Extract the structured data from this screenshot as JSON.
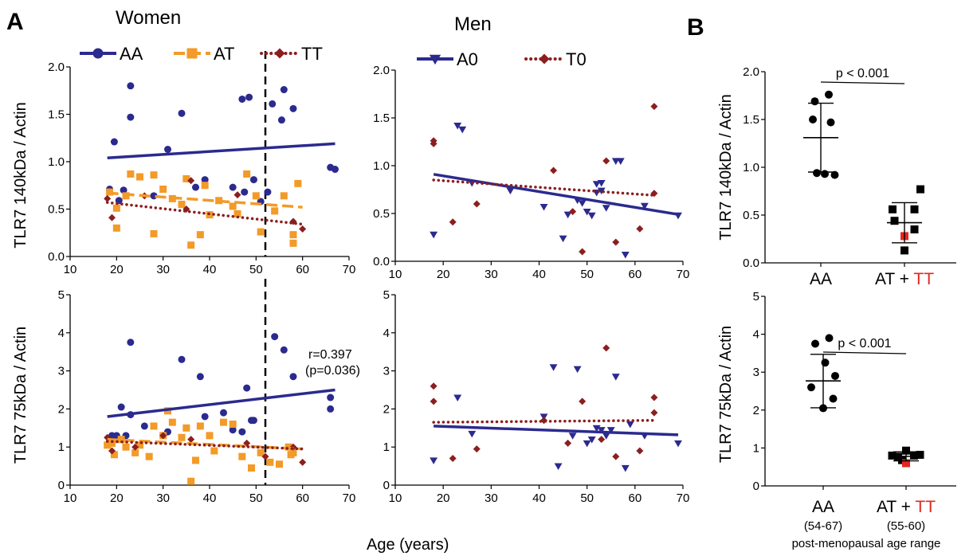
{
  "figure": {
    "panel_a": "A",
    "panel_b": "B",
    "title_women": "Women",
    "title_men": "Men",
    "xlabel": "Age (years)",
    "ylabel_140": "TLR7 140kDa / Actin",
    "ylabel_75": "TLR7 75kDa / Actin",
    "annotation_r": "r=0.397",
    "annotation_p": "(p=0.036)",
    "b_pvalue_top": "p < 0.001",
    "b_pvalue_bottom": "p < 0.001",
    "b_cat_aa": "AA",
    "b_cat_at": "AT + ",
    "b_cat_tt": "TT",
    "b_range_aa": "(54-67)",
    "b_range_at": "(55-60)",
    "b_footer": "post-menopausal age range"
  },
  "colors": {
    "AA": "#2b2a8f",
    "AT": "#f39a28",
    "TT": "#8b1f1f",
    "A0": "#2b2a8f",
    "T0": "#8b1f1f",
    "red": "#e4261f"
  },
  "chart_data": [
    {
      "id": "women140",
      "type": "scatter",
      "xlim": [
        10,
        70
      ],
      "ylim": [
        0,
        2.0
      ],
      "xticks": [
        10,
        20,
        30,
        40,
        50,
        60,
        70
      ],
      "yticks": [
        "0.0",
        "0.5",
        "1.0",
        "1.5",
        "2.0"
      ],
      "vline": 52,
      "legend": [
        "AA",
        "AT",
        "TT"
      ],
      "series": [
        {
          "name": "AA",
          "marker": "circle",
          "color": "#2b2a8f",
          "fit": [
            [
              18,
              1.04
            ],
            [
              67,
              1.19
            ]
          ],
          "fit_style": "solid",
          "x": [
            18.5,
            19.5,
            20.5,
            21.5,
            23,
            23,
            25,
            28,
            31,
            34,
            37,
            39,
            45,
            47,
            47.5,
            48.5,
            49.5,
            51,
            52.5,
            53.5,
            55.5,
            56,
            58,
            66,
            67
          ],
          "y": [
            0.71,
            1.21,
            0.59,
            0.7,
            1.8,
            1.47,
            0.84,
            0.64,
            1.13,
            1.51,
            0.73,
            0.81,
            0.73,
            1.66,
            0.68,
            1.68,
            0.81,
            0.58,
            0.68,
            1.61,
            1.44,
            1.76,
            1.56,
            0.94,
            0.92
          ]
        },
        {
          "name": "AT",
          "marker": "square",
          "color": "#f39a28",
          "fit": [
            [
              18,
              0.67
            ],
            [
              60,
              0.52
            ]
          ],
          "fit_style": "dashed",
          "x": [
            18.5,
            20,
            20,
            22,
            23,
            25,
            28,
            28,
            30,
            32,
            34,
            35,
            36,
            38,
            39,
            40,
            42,
            45,
            46,
            48,
            50,
            51,
            54,
            56,
            58,
            58,
            59
          ],
          "y": [
            0.68,
            0.51,
            0.3,
            0.64,
            0.87,
            0.84,
            0.86,
            0.24,
            0.71,
            0.61,
            0.55,
            0.82,
            0.12,
            0.23,
            0.75,
            0.44,
            0.59,
            0.53,
            0.45,
            0.87,
            0.64,
            0.26,
            0.48,
            0.64,
            0.14,
            0.23,
            0.77
          ]
        },
        {
          "name": "TT",
          "marker": "diamond",
          "color": "#8b1f1f",
          "fit": [
            [
              18,
              0.57
            ],
            [
              60,
              0.34
            ]
          ],
          "fit_style": "dotted",
          "x": [
            18,
            19,
            26,
            35,
            36,
            46,
            58,
            60
          ],
          "y": [
            0.61,
            0.41,
            0.64,
            0.5,
            0.8,
            0.65,
            0.37,
            0.29
          ]
        }
      ]
    },
    {
      "id": "men140",
      "type": "scatter",
      "xlim": [
        10,
        70
      ],
      "ylim": [
        0,
        2.0
      ],
      "xticks": [
        10,
        20,
        30,
        40,
        50,
        60,
        70
      ],
      "yticks": [
        "0.0",
        "0.5",
        "1.0",
        "1.5",
        "2.0"
      ],
      "legend": [
        "A0",
        "T0"
      ],
      "series": [
        {
          "name": "A0",
          "marker": "triangle",
          "color": "#2b2a8f",
          "fit": [
            [
              18,
              0.91
            ],
            [
              69,
              0.49
            ]
          ],
          "fit_style": "solid",
          "x": [
            18,
            23,
            24,
            26,
            34,
            41,
            45,
            46,
            48,
            49,
            50,
            51,
            52,
            52,
            53,
            53,
            54,
            56,
            57,
            58,
            62,
            69
          ],
          "y": [
            0.28,
            1.42,
            1.38,
            0.82,
            0.74,
            0.57,
            0.24,
            0.49,
            0.64,
            0.61,
            0.52,
            0.48,
            0.81,
            0.72,
            0.82,
            0.74,
            0.56,
            1.05,
            1.05,
            0.07,
            0.58,
            0.48
          ]
        },
        {
          "name": "T0",
          "marker": "diamond",
          "color": "#8b1f1f",
          "fit": [
            [
              18,
              0.85
            ],
            [
              64,
              0.69
            ]
          ],
          "fit_style": "dotted",
          "x": [
            18,
            18,
            22,
            27,
            43,
            47,
            49,
            54,
            56,
            61,
            64,
            64
          ],
          "y": [
            1.26,
            1.23,
            0.41,
            0.6,
            0.95,
            0.52,
            0.1,
            1.05,
            0.2,
            0.34,
            0.71,
            1.62
          ]
        }
      ]
    },
    {
      "id": "women75",
      "type": "scatter",
      "xlim": [
        10,
        70
      ],
      "ylim": [
        0,
        5
      ],
      "xticks": [
        10,
        20,
        30,
        40,
        50,
        60,
        70
      ],
      "yticks": [
        "0",
        "1",
        "2",
        "3",
        "4",
        "5"
      ],
      "vline": 52,
      "series": [
        {
          "name": "AA",
          "marker": "circle",
          "color": "#2b2a8f",
          "fit": [
            [
              18,
              1.8
            ],
            [
              67,
              2.5
            ]
          ],
          "fit_style": "solid",
          "x": [
            19,
            20,
            21,
            22,
            23,
            23,
            26,
            31,
            34,
            38,
            39,
            43,
            45,
            47,
            48,
            49,
            49.5,
            54,
            56,
            58,
            66,
            66
          ],
          "y": [
            1.3,
            1.3,
            2.05,
            1.3,
            3.75,
            1.85,
            1.55,
            1.4,
            3.3,
            2.85,
            1.8,
            1.9,
            1.45,
            1.4,
            2.55,
            1.7,
            1.7,
            3.9,
            3.55,
            2.85,
            2.3,
            2.0
          ]
        },
        {
          "name": "AT",
          "marker": "square",
          "color": "#f39a28",
          "fit": [
            [
              18,
              1.2
            ],
            [
              60,
              0.95
            ]
          ],
          "fit_style": "dashed",
          "x": [
            18,
            19,
            19.5,
            21,
            22,
            24,
            25,
            27,
            28,
            30,
            31,
            32,
            34,
            35,
            36,
            37,
            38,
            40,
            41,
            43,
            45,
            47,
            49,
            51,
            53,
            55,
            57,
            57.5,
            58
          ],
          "y": [
            1.05,
            1.1,
            0.8,
            1.2,
            1.0,
            0.85,
            1.05,
            0.75,
            1.55,
            1.3,
            1.95,
            1.65,
            1.25,
            1.5,
            0.1,
            0.65,
            1.55,
            1.3,
            0.9,
            1.65,
            1.6,
            0.75,
            0.45,
            0.85,
            0.6,
            0.55,
            1.0,
            0.8,
            0.85
          ]
        },
        {
          "name": "TT",
          "marker": "diamond",
          "color": "#8b1f1f",
          "fit": [
            [
              18,
              1.15
            ],
            [
              60,
              0.95
            ]
          ],
          "fit_style": "dotted",
          "x": [
            18,
            19,
            24,
            30,
            36,
            48,
            52,
            58,
            60
          ],
          "y": [
            1.25,
            0.9,
            1.0,
            1.3,
            1.2,
            1.1,
            0.75,
            1.0,
            0.6
          ]
        }
      ]
    },
    {
      "id": "men75",
      "type": "scatter",
      "xlim": [
        10,
        70
      ],
      "ylim": [
        0,
        5
      ],
      "xticks": [
        10,
        20,
        30,
        40,
        50,
        60,
        70
      ],
      "yticks": [
        "0",
        "1",
        "2",
        "3",
        "4",
        "5"
      ],
      "series": [
        {
          "name": "A0",
          "marker": "triangle",
          "color": "#2b2a8f",
          "fit": [
            [
              18,
              1.55
            ],
            [
              69,
              1.32
            ]
          ],
          "fit_style": "solid",
          "x": [
            18,
            23,
            26,
            41,
            43,
            44,
            47,
            48,
            50,
            51,
            52,
            53,
            54,
            55,
            56,
            58,
            59,
            62,
            69
          ],
          "y": [
            0.65,
            2.3,
            1.35,
            1.8,
            3.1,
            0.5,
            1.3,
            3.05,
            1.1,
            1.2,
            1.5,
            1.45,
            1.3,
            1.45,
            2.85,
            0.45,
            1.6,
            1.3,
            1.1
          ]
        },
        {
          "name": "T0",
          "marker": "diamond",
          "color": "#8b1f1f",
          "fit": [
            [
              18,
              1.65
            ],
            [
              64,
              1.7
            ]
          ],
          "fit_style": "dotted",
          "x": [
            18,
            18,
            22,
            27,
            41,
            46,
            49,
            53,
            54,
            56,
            61,
            64,
            64
          ],
          "y": [
            2.6,
            2.2,
            0.7,
            0.95,
            1.7,
            1.1,
            2.2,
            1.2,
            3.6,
            0.75,
            0.9,
            2.3,
            1.9
          ]
        }
      ]
    },
    {
      "id": "b140",
      "type": "scatter",
      "ylim": [
        0,
        2.0
      ],
      "yticks": [
        "0.0",
        "0.5",
        "1.0",
        "1.5",
        "2.0"
      ],
      "categories": [
        "AA",
        "AT + TT"
      ],
      "groups": [
        {
          "name": "AA",
          "marker": "circle",
          "mean": 1.31,
          "sd_low": 0.95,
          "sd_high": 1.67,
          "points": [
            [
              -1.5,
              1.69
            ],
            [
              2,
              1.76
            ],
            [
              -2,
              1.5
            ],
            [
              2.5,
              1.47
            ],
            [
              -1,
              0.94
            ],
            [
              1,
              0.93
            ],
            [
              3.5,
              0.92
            ]
          ]
        },
        {
          "name": "AT + TT",
          "marker": "square",
          "mean": 0.42,
          "sd_low": 0.21,
          "sd_high": 0.63,
          "points": [
            [
              4,
              0.77
            ],
            [
              -3,
              0.56
            ],
            [
              2.5,
              0.56
            ],
            [
              -2.5,
              0.44
            ],
            [
              2.5,
              0.35
            ],
            [
              0,
              0.13
            ]
          ],
          "red_point": [
            0,
            0.28
          ]
        }
      ]
    },
    {
      "id": "b75",
      "type": "scatter",
      "ylim": [
        0,
        5
      ],
      "yticks": [
        "0",
        "1",
        "2",
        "3",
        "4",
        "5"
      ],
      "categories": [
        "AA",
        "AT + TT"
      ],
      "groups": [
        {
          "name": "AA",
          "marker": "circle",
          "mean": 2.77,
          "sd_low": 2.06,
          "sd_high": 3.47,
          "points": [
            [
              1.5,
              3.9
            ],
            [
              -2,
              3.75
            ],
            [
              0.5,
              3.25
            ],
            [
              3,
              2.9
            ],
            [
              -3,
              2.6
            ],
            [
              2.5,
              2.3
            ],
            [
              0,
              2.05
            ]
          ]
        },
        {
          "name": "AT + TT",
          "marker": "square",
          "mean": 0.78,
          "sd_low": 0.66,
          "sd_high": 0.9,
          "points": [
            [
              -3.5,
              0.8
            ],
            [
              -2,
              0.77
            ],
            [
              0,
              0.93
            ],
            [
              2,
              0.8
            ],
            [
              3.5,
              0.82
            ],
            [
              -1,
              0.68
            ]
          ],
          "red_point": [
            0,
            0.6
          ]
        }
      ]
    }
  ]
}
